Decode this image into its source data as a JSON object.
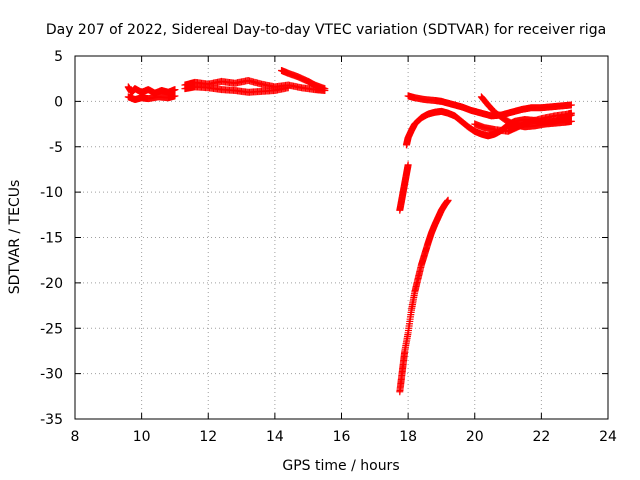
{
  "chart_data": {
    "type": "scatter",
    "title": "Day 207 of 2022, Sidereal Day-to-day VTEC variation (SDTVAR) for receiver riga",
    "xlabel": "GPS time / hours",
    "ylabel": "SDTVAR / TECUs",
    "xlim": [
      8,
      24
    ],
    "ylim": [
      -35,
      5
    ],
    "x_ticks": [
      "8",
      "10",
      "12",
      "14",
      "16",
      "18",
      "20",
      "22",
      "24"
    ],
    "y_ticks": [
      "5",
      "0",
      "-5",
      "-10",
      "-15",
      "-20",
      "-25",
      "-30",
      "-35"
    ],
    "grid": true,
    "marker": "+",
    "color": "#ff0000",
    "series": [
      {
        "x": [
          9.6,
          9.7,
          9.8,
          10.0,
          10.2,
          10.4,
          10.6,
          10.8,
          11.0
        ],
        "y": [
          1.6,
          1.0,
          1.4,
          1.0,
          1.3,
          0.9,
          1.2,
          1.0,
          1.3
        ]
      },
      {
        "x": [
          9.6,
          9.8,
          10.0,
          10.2,
          10.5,
          10.8,
          11.0
        ],
        "y": [
          0.5,
          0.2,
          0.4,
          0.3,
          0.5,
          0.4,
          0.6
        ]
      },
      {
        "x": [
          11.3,
          11.6,
          12.0,
          12.4,
          12.8,
          13.2,
          13.6,
          14.0,
          14.4,
          14.8,
          15.2,
          15.5
        ],
        "y": [
          1.8,
          2.1,
          1.9,
          2.2,
          2.0,
          2.3,
          1.9,
          1.6,
          1.8,
          1.5,
          1.3,
          1.2
        ]
      },
      {
        "x": [
          11.3,
          11.6,
          12.0,
          12.4,
          12.8,
          13.2,
          13.6,
          14.0,
          14.4
        ],
        "y": [
          1.4,
          1.6,
          1.5,
          1.3,
          1.2,
          1.0,
          1.1,
          1.2,
          1.5
        ]
      },
      {
        "x": [
          14.2,
          14.4,
          14.7,
          15.0,
          15.2,
          15.5
        ],
        "y": [
          3.4,
          3.1,
          2.7,
          2.2,
          1.8,
          1.4
        ]
      },
      {
        "x": [
          17.75,
          17.8,
          17.85,
          17.9,
          17.95,
          18.0
        ],
        "y": [
          -12.0,
          -11.0,
          -10.0,
          -9.0,
          -8.0,
          -7.0
        ]
      },
      {
        "x": [
          17.75,
          17.8,
          17.85,
          17.9,
          18.0,
          18.1,
          18.2,
          18.3,
          18.4,
          18.5,
          18.6,
          18.7,
          18.8,
          18.9,
          19.0,
          19.1,
          19.2
        ],
        "y": [
          -32.0,
          -30.5,
          -29.0,
          -27.5,
          -25.5,
          -23.0,
          -21.0,
          -19.5,
          -18.0,
          -16.8,
          -15.6,
          -14.5,
          -13.6,
          -12.8,
          -12.0,
          -11.4,
          -10.9
        ]
      },
      {
        "x": [
          17.95,
          18.0,
          18.1,
          18.2,
          18.4,
          18.6,
          18.8,
          19.0,
          19.2,
          19.4,
          19.6,
          19.8,
          20.0,
          20.2,
          20.4,
          20.6,
          20.8,
          21.0,
          21.2,
          21.5,
          21.8,
          22.1,
          22.4,
          22.7,
          22.9
        ],
        "y": [
          -4.8,
          -4.0,
          -3.2,
          -2.5,
          -1.8,
          -1.4,
          -1.2,
          -1.1,
          -1.3,
          -1.6,
          -2.2,
          -2.8,
          -3.3,
          -3.6,
          -3.8,
          -3.6,
          -3.2,
          -2.6,
          -2.2,
          -2.0,
          -2.1,
          -2.3,
          -2.2,
          -1.8,
          -1.5
        ]
      },
      {
        "x": [
          18.0,
          18.2,
          18.5,
          18.8,
          19.0,
          19.3,
          19.6,
          19.9,
          20.2,
          20.5,
          20.8,
          21.1,
          21.4,
          21.7,
          22.0,
          22.3,
          22.6,
          22.9
        ],
        "y": [
          0.6,
          0.4,
          0.2,
          0.1,
          0.0,
          -0.3,
          -0.6,
          -1.0,
          -1.3,
          -1.6,
          -1.5,
          -1.2,
          -0.9,
          -0.7,
          -0.7,
          -0.6,
          -0.5,
          -0.4
        ]
      },
      {
        "x": [
          20.2,
          20.4,
          20.6,
          20.9,
          21.2,
          21.5,
          21.8,
          22.1,
          22.4,
          22.7,
          22.9
        ],
        "y": [
          0.5,
          -0.4,
          -1.2,
          -2.0,
          -2.6,
          -2.8,
          -2.7,
          -2.5,
          -2.4,
          -2.3,
          -2.2
        ]
      },
      {
        "x": [
          20.0,
          20.3,
          20.6,
          21.0,
          21.3,
          21.6,
          22.0,
          22.4,
          22.8,
          22.9
        ],
        "y": [
          -2.5,
          -2.9,
          -3.1,
          -3.3,
          -2.8,
          -2.3,
          -1.9,
          -1.6,
          -1.4,
          -1.3
        ]
      }
    ]
  }
}
